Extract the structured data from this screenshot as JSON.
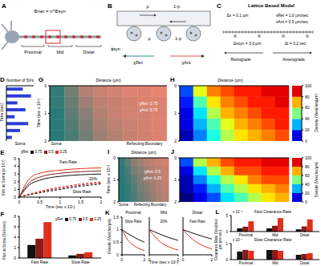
{
  "diagrams": {
    "A": {
      "panel": "A",
      "equation": "Φnet = n*Φsyn",
      "regions": [
        "Proximal",
        "Mid",
        "Distal"
      ]
    },
    "B": {
      "panel": "B",
      "flux": "ϕsyn",
      "p": "p",
      "q": "1-p",
      "retro": "χRet",
      "antero": "χAnt"
    },
    "C": {
      "panel": "C",
      "title": "Lattice Based Model",
      "dx": "Δx = 0.1 μm",
      "v_ret": "vRet = 1.0 μm/sec",
      "v_ant": "vAnt = 0.5 μm/sec",
      "dx_syn": "Δxsyn = 3.0 μm",
      "dt": "Δt = 0.2 sec",
      "left": "Retrograde",
      "right": "Anterograde"
    }
  },
  "chart_data": [
    {
      "panel": "D",
      "type": "bar",
      "orientation": "horizontal",
      "x_label": "Number of SVs",
      "y_label": "Time (sec)",
      "categories": [
        null,
        null,
        null,
        null,
        null,
        null,
        null,
        null
      ],
      "values": [
        6,
        9,
        4,
        7,
        3,
        8,
        5,
        2
      ],
      "color": "#2b3fd6",
      "xlim": [
        0,
        10
      ],
      "tick_labels": false,
      "annotations": [
        "Soma"
      ]
    },
    {
      "panel": "G",
      "type": "heatmap",
      "x_label": "Distance (μm)",
      "y_label": "Time (sec x 10⁵)",
      "y_bins": [
        0,
        0.4,
        0.8,
        1.2,
        1.6,
        2
      ],
      "cells": [
        [
          0.1,
          0.4,
          0.7,
          0.8,
          0.85,
          0.9,
          0.9,
          0.95
        ],
        [
          0.1,
          0.35,
          0.6,
          0.75,
          0.8,
          0.85,
          0.9,
          0.9
        ],
        [
          0.05,
          0.3,
          0.5,
          0.7,
          0.8,
          0.85,
          0.85,
          0.9
        ],
        [
          0.05,
          0.25,
          0.45,
          0.65,
          0.75,
          0.8,
          0.85,
          0.9
        ],
        [
          0.05,
          0.2,
          0.4,
          0.6,
          0.7,
          0.8,
          0.85,
          0.9
        ]
      ],
      "ylim": [
        0,
        2
      ],
      "yticks": [
        0,
        1,
        2
      ],
      "tick_labels": "y",
      "colors": [
        "#1f7a78",
        "#f2836f"
      ],
      "annotations": [
        "χRet: 0.75",
        "χAnt: 0.75",
        "Soma",
        "Reflecting Boundary"
      ]
    },
    {
      "panel": "H",
      "type": "heatmap",
      "x_label": "Distance (μm)",
      "y_bins": [
        0,
        0.4,
        0.8,
        1.2,
        1.6,
        2
      ],
      "cells": [
        [
          20,
          60,
          75,
          80,
          85,
          85,
          90,
          90
        ],
        [
          15,
          45,
          65,
          75,
          80,
          85,
          85,
          90
        ],
        [
          10,
          35,
          55,
          70,
          75,
          80,
          85,
          85
        ],
        [
          10,
          30,
          45,
          60,
          70,
          75,
          80,
          85
        ],
        [
          5,
          25,
          40,
          55,
          65,
          70,
          75,
          80
        ]
      ],
      "ylim": [
        0,
        2
      ],
      "yticks": [
        0,
        1,
        2
      ],
      "tick_labels": "y",
      "colorbar": {
        "label": "Density (Vesicles/μm)",
        "range": [
          0,
          100
        ],
        "ticks": [
          0,
          20,
          40,
          60,
          80,
          100
        ]
      }
    },
    {
      "panel": "E",
      "type": "line",
      "x_label": "Time (sec x 10⁵)",
      "y_label": "SVs at Soma (x 10⁴)",
      "x": [
        0,
        0.25,
        0.5,
        1,
        1.5,
        2
      ],
      "xlim": [
        0,
        2
      ],
      "xticks": [
        0,
        0.5,
        1,
        1.5,
        2
      ],
      "ylim": [
        0,
        5
      ],
      "yticks": [
        0,
        1,
        2,
        3,
        4,
        5
      ],
      "legend": "upper left",
      "series": [
        {
          "name": "0.75",
          "color": "#111111",
          "line_style": "solid",
          "values": [
            0,
            1.6,
            2.2,
            2.7,
            2.9,
            3.0
          ]
        },
        {
          "name": "0.5",
          "color": "#8b1a1a",
          "line_style": "solid",
          "values": [
            0,
            1.9,
            2.6,
            3.1,
            3.3,
            3.4
          ]
        },
        {
          "name": "0.25",
          "color": "#e0301e",
          "line_style": "solid",
          "values": [
            0,
            2.4,
            3.1,
            3.5,
            3.7,
            3.8
          ]
        },
        {
          "name": "0.75",
          "color": "#111111",
          "line_style": "dashed",
          "values": [
            0,
            0.3,
            0.55,
            1.0,
            1.4,
            1.7
          ]
        },
        {
          "name": "0.5",
          "color": "#8b1a1a",
          "line_style": "dashed",
          "values": [
            0,
            0.35,
            0.65,
            1.15,
            1.55,
            1.85
          ]
        },
        {
          "name": "0.25",
          "color": "#e0301e",
          "line_style": "dashed",
          "values": [
            0,
            0.4,
            0.75,
            1.3,
            1.7,
            2.0
          ]
        }
      ],
      "annotations": [
        "χRet",
        "Fast Rate",
        "Slow Rate",
        "20%"
      ]
    },
    {
      "panel": "F",
      "type": "bar",
      "y_label": "Flux at Soma (SVs/sec)",
      "categories": [
        "Fast Rate",
        "Slow Rate"
      ],
      "series": [
        {
          "name": "0.75",
          "color": "#111111",
          "values": [
            2.5,
            0.5
          ]
        },
        {
          "name": "0.5",
          "color": "#8b1a1a",
          "values": [
            3.7,
            0.8
          ]
        },
        {
          "name": "0.25",
          "color": "#e0301e",
          "values": [
            6.9,
            1.1
          ]
        }
      ],
      "ylim": [
        0,
        8
      ],
      "yticks": [
        0,
        2,
        4,
        6,
        8
      ],
      "legend": "upper right",
      "annotations": [
        "χRet"
      ]
    },
    {
      "panel": "I",
      "type": "heatmap",
      "x_label": "Distance (μm)",
      "y_label": "Time (sec x 10⁵)",
      "y_bins": [
        0,
        0.4,
        0.8,
        1.2,
        1.6,
        2
      ],
      "cells": [
        [
          0.1,
          0.3,
          0.5,
          0.6,
          0.7,
          0.75,
          0.8,
          0.85
        ],
        [
          0.05,
          0.2,
          0.4,
          0.5,
          0.6,
          0.7,
          0.75,
          0.8
        ],
        [
          0.05,
          0.15,
          0.3,
          0.45,
          0.55,
          0.65,
          0.7,
          0.8
        ],
        [
          0,
          0.1,
          0.25,
          0.4,
          0.5,
          0.6,
          0.7,
          0.75
        ],
        [
          0,
          0.1,
          0.2,
          0.35,
          0.45,
          0.55,
          0.65,
          0.7
        ]
      ],
      "ylim": [
        0,
        2
      ],
      "yticks": [
        0,
        1,
        2
      ],
      "tick_labels": "y",
      "colors": [
        "#1f7a78",
        "#f2836f"
      ],
      "annotations": [
        "χRet: 0.5",
        "χAnt: 0.25",
        "Soma",
        "Reflecting Boundary"
      ]
    },
    {
      "panel": "J",
      "type": "heatmap",
      "y_bins": [
        0,
        0.4,
        0.8,
        1.2,
        1.6,
        2
      ],
      "cells": [
        [
          20,
          55,
          70,
          80,
          85,
          85,
          90,
          90
        ],
        [
          10,
          35,
          55,
          70,
          80,
          80,
          85,
          85
        ],
        [
          5,
          25,
          40,
          55,
          65,
          75,
          80,
          80
        ],
        [
          5,
          15,
          30,
          45,
          55,
          65,
          70,
          75
        ],
        [
          0,
          10,
          20,
          35,
          45,
          55,
          65,
          70
        ]
      ],
      "ylim": [
        0,
        2
      ],
      "yticks": [
        0,
        1,
        2
      ],
      "tick_labels": "y",
      "colorbar": {
        "label": "Density (Vesicles/μm)",
        "range": [
          0,
          100
        ],
        "ticks": [
          0,
          20,
          40,
          60,
          80,
          100
        ]
      }
    },
    {
      "panel": "K",
      "type": "line",
      "title": "Proximal",
      "y_label": "Density (Vesicles/μm)",
      "x": [
        0,
        0.5,
        1,
        1.5,
        2
      ],
      "xlim": [
        0,
        2
      ],
      "xticks": [
        0,
        2
      ],
      "ylim": [
        0,
        1.5
      ],
      "yticks": [
        0,
        0.5,
        1,
        1.5
      ],
      "series": [
        {
          "color": "#111111",
          "values": [
            1.0,
            0.85,
            0.72,
            0.6,
            0.5
          ]
        },
        {
          "color": "#e0301e",
          "values": [
            1.0,
            0.6,
            0.38,
            0.25,
            0.17
          ]
        }
      ],
      "annotations": [
        "Slow Rate"
      ]
    },
    {
      "type": "line",
      "title": "Mid",
      "x_label": "Time (sec x 10⁵)",
      "x": [
        0,
        0.5,
        1,
        1.5,
        2
      ],
      "xlim": [
        0,
        2
      ],
      "xticks": [
        0,
        2
      ],
      "ylim": [
        0,
        1.5
      ],
      "tick_labels": "x",
      "series": [
        {
          "color": "#111111",
          "values": [
            1.0,
            0.88,
            0.76,
            0.66,
            0.57
          ]
        },
        {
          "color": "#e0301e",
          "values": [
            1.0,
            0.65,
            0.42,
            0.28,
            0.19
          ]
        }
      ],
      "annotations": [
        "20%"
      ]
    },
    {
      "type": "line",
      "title": "Distal",
      "x": [
        0,
        0.5,
        1,
        1.5,
        2
      ],
      "xlim": [
        0,
        2
      ],
      "xticks": [
        0,
        2
      ],
      "ylim": [
        0,
        1.5
      ],
      "tick_labels": "x",
      "series": [
        {
          "color": "#111111",
          "values": [
            1.0,
            0.9,
            0.8,
            0.71,
            0.63
          ]
        },
        {
          "color": "#e0301e",
          "values": [
            1.0,
            0.7,
            0.48,
            0.33,
            0.23
          ]
        }
      ],
      "annotations": [
        "Fast Rate"
      ]
    },
    {
      "panel": "L",
      "type": "bar",
      "title": "Fast Clearance Rate",
      "y_label": "Clearance Rate (Vesicles/μm per sec)",
      "categories": [
        "Proximal",
        "Mid",
        "Distal"
      ],
      "series": [
        {
          "color": "#111111",
          "values": [
            1.0,
            1.0,
            0.7
          ]
        },
        {
          "color": "#8b1a1a",
          "values": [
            1.5,
            1.8,
            1.6
          ]
        },
        {
          "color": "#e0301e",
          "values": [
            3.2,
            4.2,
            3.8
          ]
        }
      ],
      "ylim": [
        0,
        5
      ],
      "yticks": [
        0,
        5
      ],
      "annotations": [
        "x 10⁻⁴"
      ]
    },
    {
      "type": "bar",
      "title": "Slow Clearance Rate",
      "categories": [
        "Proximal",
        "Mid",
        "Distal"
      ],
      "series": [
        {
          "color": "#111111",
          "values": [
            0.5,
            0.6,
            0.3
          ]
        },
        {
          "color": "#8b1a1a",
          "values": [
            0.6,
            0.6,
            0.35
          ]
        },
        {
          "color": "#e0301e",
          "values": [
            0.55,
            0.55,
            0.4
          ]
        }
      ],
      "ylim": [
        0,
        1
      ],
      "yticks": [
        0,
        1
      ],
      "annotations": [
        "x 10⁻⁴"
      ]
    }
  ]
}
